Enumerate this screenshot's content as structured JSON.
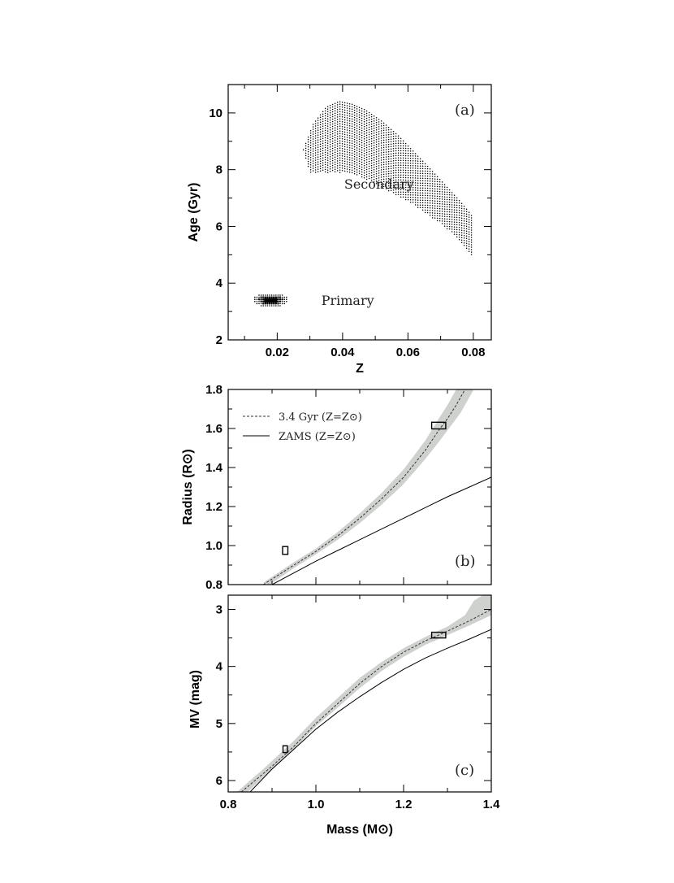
{
  "chart_data": [
    {
      "type": "scatter",
      "panel_label": "(a)",
      "xlabel": "Z",
      "ylabel": "Age (Gyr)",
      "xlim": [
        0.005,
        0.0855
      ],
      "ylim": [
        2.0,
        11.0
      ],
      "xticks": [
        0.02,
        0.04,
        0.06,
        0.08
      ],
      "xtick_labels": [
        "0.02",
        "0.04",
        "0.06",
        "0.08"
      ],
      "yticks": [
        2,
        4,
        6,
        8,
        10
      ],
      "ytick_labels": [
        "2",
        "4",
        "6",
        "8",
        "10"
      ],
      "annotations": [
        {
          "text": "Secondary",
          "x": 0.0405,
          "y": 7.5
        },
        {
          "text": "Primary",
          "x": 0.0335,
          "y": 3.4
        }
      ],
      "regions": [
        {
          "name": "Secondary",
          "upper_edge": [
            [
              0.028,
              8.7
            ],
            [
              0.031,
              9.6
            ],
            [
              0.035,
              10.2
            ],
            [
              0.039,
              10.4
            ],
            [
              0.043,
              10.3
            ],
            [
              0.047,
              10.1
            ],
            [
              0.052,
              9.7
            ],
            [
              0.057,
              9.2
            ],
            [
              0.062,
              8.6
            ],
            [
              0.067,
              8.0
            ],
            [
              0.071,
              7.5
            ],
            [
              0.075,
              7.0
            ],
            [
              0.078,
              6.6
            ],
            [
              0.08,
              6.3
            ]
          ],
          "lower_edge": [
            [
              0.028,
              8.7
            ],
            [
              0.03,
              7.9
            ],
            [
              0.035,
              7.9
            ],
            [
              0.04,
              7.9
            ],
            [
              0.045,
              7.8
            ],
            [
              0.05,
              7.5
            ],
            [
              0.055,
              7.2
            ],
            [
              0.06,
              6.9
            ],
            [
              0.065,
              6.5
            ],
            [
              0.07,
              6.1
            ],
            [
              0.073,
              5.8
            ],
            [
              0.076,
              5.5
            ],
            [
              0.078,
              5.2
            ],
            [
              0.08,
              4.9
            ]
          ],
          "ridge": [
            [
              0.034,
              9.1
            ],
            [
              0.04,
              9.0
            ],
            [
              0.045,
              8.8
            ],
            [
              0.05,
              8.5
            ],
            [
              0.055,
              8.1
            ],
            [
              0.06,
              7.7
            ],
            [
              0.065,
              7.2
            ],
            [
              0.07,
              6.7
            ],
            [
              0.073,
              6.4
            ]
          ]
        },
        {
          "name": "Primary",
          "center": [
            0.018,
            3.4
          ],
          "z_range": [
            0.013,
            0.024
          ],
          "age_range": [
            3.15,
            3.65
          ]
        }
      ]
    },
    {
      "type": "line",
      "panel_label": "(b)",
      "xlabel": "",
      "ylabel": "Radius (R⊙)",
      "xlim": [
        0.8,
        1.4
      ],
      "ylim": [
        0.8,
        1.8
      ],
      "yticks": [
        0.8,
        1.0,
        1.2,
        1.4,
        1.6,
        1.8
      ],
      "ytick_labels": [
        "0.8",
        "1.0",
        "1.2",
        "1.4",
        "1.6",
        "1.8"
      ],
      "legend": {
        "position": "top-left",
        "entries": [
          {
            "label": "3.4 Gyr (Z=Z⊙)",
            "style": "dotted"
          },
          {
            "label": "ZAMS (Z=Z⊙)",
            "style": "solid"
          }
        ]
      },
      "series": [
        {
          "name": "3.4 Gyr (Z=Z⊙)",
          "style": "dotted",
          "x": [
            0.88,
            0.95,
            1.0,
            1.05,
            1.1,
            1.15,
            1.2,
            1.25,
            1.28,
            1.3,
            1.32,
            1.34
          ],
          "y": [
            0.8,
            0.9,
            0.97,
            1.05,
            1.14,
            1.24,
            1.35,
            1.49,
            1.59,
            1.65,
            1.72,
            1.8
          ]
        },
        {
          "name": "ZAMS (Z=Z⊙)",
          "style": "solid",
          "x": [
            0.9,
            0.95,
            1.0,
            1.05,
            1.1,
            1.15,
            1.2,
            1.25,
            1.3,
            1.35,
            1.4
          ],
          "y": [
            0.8,
            0.86,
            0.92,
            0.975,
            1.03,
            1.085,
            1.14,
            1.195,
            1.25,
            1.3,
            1.35
          ]
        }
      ],
      "band": {
        "upper": [
          [
            0.88,
            0.81
          ],
          [
            0.95,
            0.915
          ],
          [
            1.0,
            0.985
          ],
          [
            1.05,
            1.07
          ],
          [
            1.1,
            1.165
          ],
          [
            1.15,
            1.27
          ],
          [
            1.2,
            1.39
          ],
          [
            1.25,
            1.54
          ],
          [
            1.28,
            1.65
          ],
          [
            1.3,
            1.72
          ],
          [
            1.32,
            1.8
          ]
        ],
        "lower": [
          [
            0.895,
            0.8
          ],
          [
            0.95,
            0.885
          ],
          [
            1.0,
            0.955
          ],
          [
            1.05,
            1.03
          ],
          [
            1.1,
            1.115
          ],
          [
            1.15,
            1.21
          ],
          [
            1.2,
            1.315
          ],
          [
            1.25,
            1.445
          ],
          [
            1.28,
            1.53
          ],
          [
            1.3,
            1.59
          ],
          [
            1.33,
            1.68
          ],
          [
            1.36,
            1.8
          ]
        ]
      },
      "measurements": [
        {
          "mass": 0.93,
          "mass_err": 0.006,
          "value": 0.975,
          "value_err": 0.02
        },
        {
          "mass": 1.28,
          "mass_err": 0.016,
          "value": 1.615,
          "value_err": 0.017
        }
      ]
    },
    {
      "type": "line",
      "panel_label": "(c)",
      "xlabel": "Mass (M⊙)",
      "ylabel": "MV (mag)",
      "xlim": [
        0.8,
        1.4
      ],
      "ylim": [
        6.2,
        2.75
      ],
      "y_inverted": true,
      "xticks": [
        0.8,
        1.0,
        1.2,
        1.4
      ],
      "xtick_labels": [
        "0.8",
        "1.0",
        "1.2",
        "1.4"
      ],
      "yticks": [
        3,
        4,
        5,
        6
      ],
      "ytick_labels": [
        "3",
        "4",
        "5",
        "6"
      ],
      "series": [
        {
          "name": "3.4 Gyr (Z=Z⊙)",
          "style": "dotted",
          "x": [
            0.83,
            0.9,
            0.95,
            1.0,
            1.05,
            1.1,
            1.15,
            1.2,
            1.25,
            1.28,
            1.3,
            1.35,
            1.4
          ],
          "y": [
            6.2,
            5.75,
            5.4,
            5.0,
            4.65,
            4.3,
            4.0,
            3.75,
            3.55,
            3.45,
            3.38,
            3.2,
            3.0
          ]
        },
        {
          "name": "ZAMS (Z=Z⊙)",
          "style": "solid",
          "x": [
            0.85,
            0.9,
            0.95,
            1.0,
            1.05,
            1.1,
            1.15,
            1.2,
            1.25,
            1.3,
            1.35,
            1.4
          ],
          "y": [
            6.2,
            5.8,
            5.45,
            5.1,
            4.8,
            4.53,
            4.28,
            4.05,
            3.85,
            3.68,
            3.52,
            3.35
          ]
        }
      ],
      "band": {
        "upper": [
          [
            0.82,
            6.2
          ],
          [
            0.88,
            5.8
          ],
          [
            0.95,
            5.3
          ],
          [
            1.0,
            4.9
          ],
          [
            1.05,
            4.55
          ],
          [
            1.1,
            4.2
          ],
          [
            1.15,
            3.92
          ],
          [
            1.2,
            3.68
          ],
          [
            1.25,
            3.48
          ],
          [
            1.3,
            3.3
          ],
          [
            1.34,
            3.1
          ],
          [
            1.36,
            2.85
          ],
          [
            1.38,
            2.75
          ],
          [
            1.4,
            2.75
          ]
        ],
        "lower": [
          [
            0.845,
            6.2
          ],
          [
            0.9,
            5.8
          ],
          [
            0.95,
            5.45
          ],
          [
            1.0,
            5.05
          ],
          [
            1.05,
            4.72
          ],
          [
            1.1,
            4.38
          ],
          [
            1.15,
            4.08
          ],
          [
            1.2,
            3.83
          ],
          [
            1.25,
            3.62
          ],
          [
            1.3,
            3.45
          ],
          [
            1.35,
            3.28
          ],
          [
            1.4,
            3.1
          ]
        ]
      },
      "measurements": [
        {
          "mass": 0.93,
          "mass_err": 0.005,
          "value": 5.45,
          "value_err": 0.06
        },
        {
          "mass": 1.28,
          "mass_err": 0.016,
          "value": 3.45,
          "value_err": 0.05
        }
      ]
    }
  ]
}
